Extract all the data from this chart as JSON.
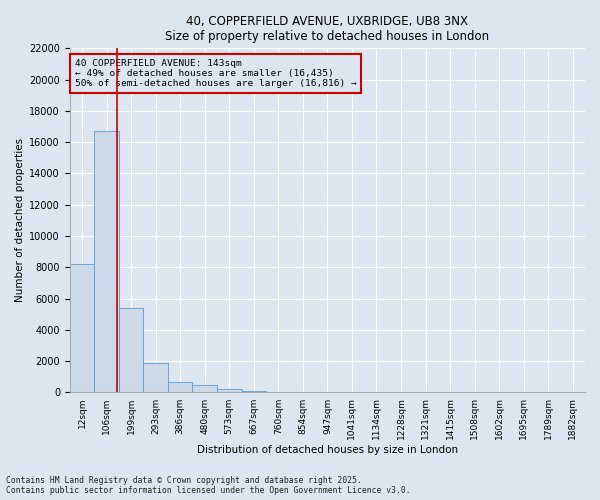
{
  "title_line1": "40, COPPERFIELD AVENUE, UXBRIDGE, UB8 3NX",
  "title_line2": "Size of property relative to detached houses in London",
  "xlabel": "Distribution of detached houses by size in London",
  "ylabel": "Number of detached properties",
  "bar_color": "#ccd9e8",
  "bar_edge_color": "#5b9bd5",
  "background_color": "#dde6f0",
  "annotation_box_color": "#cc0000",
  "red_line_color": "#cc0000",
  "categories": [
    "12sqm",
    "106sqm",
    "199sqm",
    "293sqm",
    "386sqm",
    "480sqm",
    "573sqm",
    "667sqm",
    "760sqm",
    "854sqm",
    "947sqm",
    "1041sqm",
    "1134sqm",
    "1228sqm",
    "1321sqm",
    "1415sqm",
    "1508sqm",
    "1602sqm",
    "1695sqm",
    "1789sqm",
    "1882sqm"
  ],
  "values": [
    8200,
    16700,
    5400,
    1900,
    700,
    500,
    200,
    100,
    50,
    30,
    20,
    10,
    8,
    5,
    4,
    3,
    2,
    2,
    1,
    1,
    1
  ],
  "ylim": [
    0,
    22000
  ],
  "yticks": [
    0,
    2000,
    4000,
    6000,
    8000,
    10000,
    12000,
    14000,
    16000,
    18000,
    20000,
    22000
  ],
  "annotation_line1": "40 COPPERFIELD AVENUE: 143sqm",
  "annotation_line2": "← 49% of detached houses are smaller (16,435)",
  "annotation_line3": "50% of semi-detached houses are larger (16,816) →",
  "red_line_x": 1.43,
  "footer_line1": "Contains HM Land Registry data © Crown copyright and database right 2025.",
  "footer_line2": "Contains public sector information licensed under the Open Government Licence v3.0."
}
